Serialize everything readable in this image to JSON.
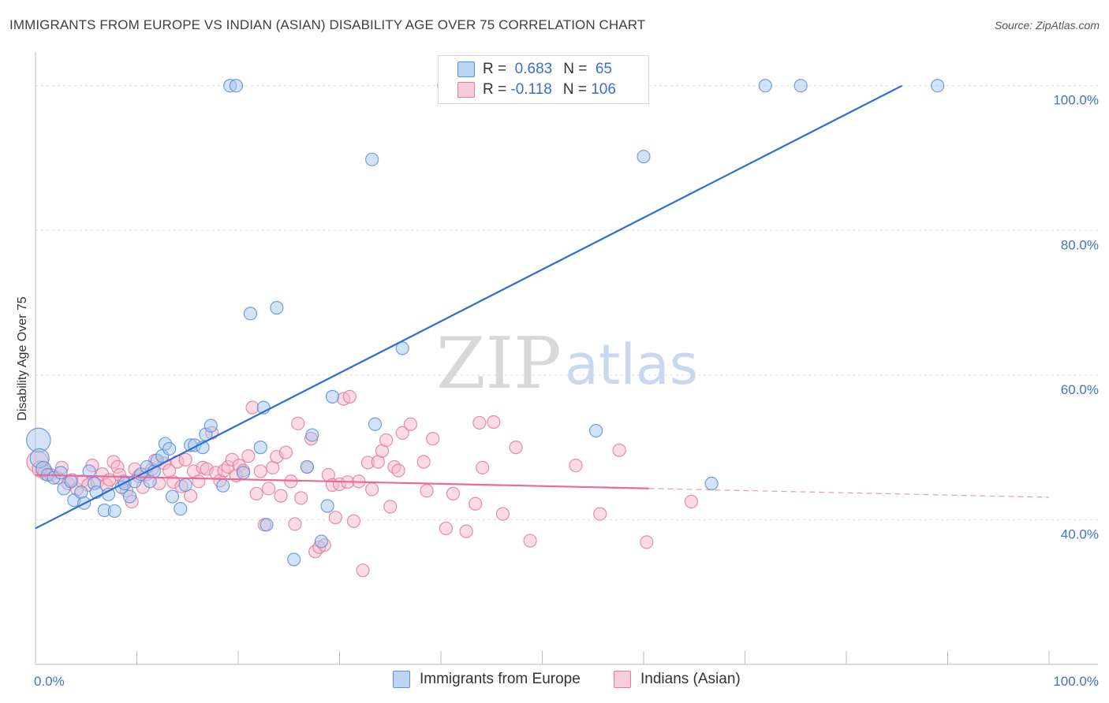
{
  "title": "IMMIGRANTS FROM EUROPE VS INDIAN (ASIAN) DISABILITY AGE OVER 75 CORRELATION CHART",
  "source": "Source: ZipAtlas.com",
  "watermark": {
    "zip": "ZIP",
    "atlas": "atlas"
  },
  "legend": {
    "europe": {
      "r_label": "R = ",
      "r_value": " 0.683",
      "n_label": "N = ",
      "n_value": " 65"
    },
    "indian": {
      "r_label": "R = ",
      "r_value": "-0.118",
      "n_label": "N = ",
      "n_value": "106"
    }
  },
  "bottom_legend": {
    "europe": "Immigrants from Europe",
    "indian": "Indians (Asian)"
  },
  "colors": {
    "europe_fill": "#a8c8f0",
    "europe_stroke": "#5b8fd6",
    "europe_line": "#2b6fd0",
    "indian_fill": "#f7b9cc",
    "indian_stroke": "#e07a9c",
    "indian_line": "#e8699a",
    "tick_text": "#3f74c9",
    "grid": "#dcdcdc"
  },
  "chart_data": {
    "type": "scatter",
    "title": "IMMIGRANTS FROM EUROPE VS INDIAN (ASIAN) DISABILITY AGE OVER 75 CORRELATION CHART",
    "xlabel": "",
    "ylabel": "Disability Age Over 75",
    "xlim": [
      0,
      100
    ],
    "ylim": [
      20,
      104
    ],
    "x_tick_labels": [
      "0.0%",
      "100.0%"
    ],
    "y_ticks": [
      40,
      60,
      80,
      100
    ],
    "y_tick_labels": [
      "40.0%",
      "60.0%",
      "80.0%",
      "100.0%"
    ],
    "grid": true,
    "legend_placement": "top-center",
    "series": [
      {
        "name": "Immigrants from Europe",
        "r": 0.683,
        "n": 65,
        "trend": {
          "x": [
            0,
            85.5
          ],
          "y": [
            38.8,
            100
          ],
          "solid_until": 85.5
        },
        "points": [
          [
            0.3,
            51,
            1.9
          ],
          [
            0.4,
            48.5,
            1.5
          ],
          [
            0.8,
            47,
            1.2
          ],
          [
            1.2,
            46.2,
            1
          ],
          [
            1.8,
            45.8,
            1
          ],
          [
            2.5,
            46.5,
            1
          ],
          [
            2.8,
            44.3,
            1
          ],
          [
            3.5,
            45.3,
            1
          ],
          [
            3.8,
            42.7,
            1
          ],
          [
            4.5,
            43.8,
            1
          ],
          [
            4.8,
            42.3,
            1
          ],
          [
            5.3,
            46.7,
            1
          ],
          [
            5.8,
            45,
            1
          ],
          [
            6,
            43.8,
            1
          ],
          [
            6.8,
            41.3,
            1
          ],
          [
            7.2,
            43.5,
            1
          ],
          [
            7.8,
            41.2,
            1
          ],
          [
            8.5,
            44.5,
            1
          ],
          [
            8.8,
            45,
            1
          ],
          [
            9.3,
            43.2,
            1
          ],
          [
            9.8,
            45.3,
            1
          ],
          [
            10.4,
            46.3,
            1
          ],
          [
            11,
            47.3,
            1
          ],
          [
            11.3,
            45.3,
            1
          ],
          [
            11.7,
            46.7,
            1
          ],
          [
            12,
            48.2,
            1
          ],
          [
            12.5,
            48.8,
            1
          ],
          [
            12.8,
            50.5,
            1
          ],
          [
            13.2,
            49.8,
            1
          ],
          [
            13.5,
            43.2,
            1
          ],
          [
            14.3,
            41.5,
            1
          ],
          [
            14.8,
            44.8,
            1
          ],
          [
            15.3,
            50.3,
            1
          ],
          [
            15.7,
            50.3,
            1
          ],
          [
            16.5,
            50,
            1
          ],
          [
            16.8,
            51.8,
            1
          ],
          [
            17.3,
            53,
            1
          ],
          [
            18.5,
            44.7,
            1
          ],
          [
            19.2,
            100,
            1
          ],
          [
            19.8,
            100,
            1
          ],
          [
            20.5,
            46.5,
            1
          ],
          [
            21.2,
            68.5,
            1
          ],
          [
            22.2,
            50,
            1
          ],
          [
            22.5,
            55.5,
            1
          ],
          [
            22.8,
            39.3,
            1
          ],
          [
            23.8,
            69.3,
            1
          ],
          [
            25.5,
            34.5,
            1
          ],
          [
            26.8,
            47.3,
            1
          ],
          [
            27.3,
            51.7,
            1
          ],
          [
            28.2,
            37,
            1
          ],
          [
            28.8,
            41.9,
            1
          ],
          [
            29.3,
            57,
            1
          ],
          [
            33.2,
            89.8,
            1
          ],
          [
            33.5,
            53.2,
            1
          ],
          [
            36.2,
            63.7,
            1
          ],
          [
            40.3,
            100,
            1
          ],
          [
            47.8,
            100,
            1
          ],
          [
            55.3,
            52.3,
            1
          ],
          [
            56.2,
            100,
            1
          ],
          [
            56.8,
            100,
            1
          ],
          [
            60,
            90.2,
            1
          ],
          [
            66.7,
            45,
            1
          ],
          [
            72,
            100,
            1
          ],
          [
            75.5,
            100,
            1
          ],
          [
            89,
            100,
            1
          ]
        ]
      },
      {
        "name": "Indians (Asian)",
        "r": -0.118,
        "n": 106,
        "trend": {
          "x": [
            0,
            100
          ],
          "y": [
            46.2,
            43.1
          ],
          "solid_until": 60.5
        },
        "points": [
          [
            0.2,
            48,
            1.7
          ],
          [
            0.5,
            47,
            1.3
          ],
          [
            1,
            46.5,
            1.2
          ],
          [
            1.5,
            46.2,
            1
          ],
          [
            2.2,
            45.8,
            1
          ],
          [
            2.6,
            47.2,
            1
          ],
          [
            3.2,
            45,
            1
          ],
          [
            3.6,
            45.5,
            1
          ],
          [
            4.1,
            44.2,
            1
          ],
          [
            4.6,
            45.3,
            1
          ],
          [
            5.2,
            44.8,
            1
          ],
          [
            5.6,
            47.5,
            1
          ],
          [
            6.1,
            45.2,
            1
          ],
          [
            6.6,
            46.3,
            1
          ],
          [
            7,
            44.8,
            1
          ],
          [
            7.3,
            45.5,
            1
          ],
          [
            7.7,
            48,
            1
          ],
          [
            8.1,
            47.3,
            1
          ],
          [
            8.3,
            46.2,
            1
          ],
          [
            8.7,
            45.3,
            1
          ],
          [
            9,
            44,
            1
          ],
          [
            9.5,
            42.5,
            1
          ],
          [
            9.8,
            47,
            1
          ],
          [
            10.2,
            46,
            1
          ],
          [
            10.6,
            44.5,
            1
          ],
          [
            11,
            46.3,
            1
          ],
          [
            11.5,
            47,
            1
          ],
          [
            11.8,
            48.2,
            1
          ],
          [
            12.2,
            45,
            1
          ],
          [
            12.7,
            47.8,
            1
          ],
          [
            13.2,
            46.8,
            1
          ],
          [
            13.6,
            45.2,
            1
          ],
          [
            14,
            48,
            1
          ],
          [
            14.4,
            44.6,
            1
          ],
          [
            14.8,
            48.3,
            1
          ],
          [
            15.3,
            43.3,
            1
          ],
          [
            15.6,
            46.7,
            1
          ],
          [
            16.1,
            45.3,
            1
          ],
          [
            16.5,
            47.2,
            1
          ],
          [
            16.9,
            47,
            1
          ],
          [
            17.4,
            52,
            1
          ],
          [
            17.8,
            46.5,
            1
          ],
          [
            18.2,
            45.4,
            1
          ],
          [
            18.6,
            46.8,
            1
          ],
          [
            19,
            47.3,
            1
          ],
          [
            19.4,
            48.3,
            1
          ],
          [
            19.8,
            46.1,
            1
          ],
          [
            20.1,
            47.5,
            1
          ],
          [
            20.5,
            46.8,
            1
          ],
          [
            21,
            48.8,
            1
          ],
          [
            21.4,
            55.5,
            1
          ],
          [
            21.8,
            43.6,
            1
          ],
          [
            22.2,
            46.7,
            1
          ],
          [
            22.6,
            39.3,
            1
          ],
          [
            23,
            44.3,
            1
          ],
          [
            23.4,
            47.2,
            1
          ],
          [
            23.8,
            48.7,
            1
          ],
          [
            24.2,
            43.3,
            1
          ],
          [
            24.7,
            49.3,
            1
          ],
          [
            25.2,
            45.3,
            1
          ],
          [
            25.6,
            39.4,
            1
          ],
          [
            25.9,
            53.3,
            1
          ],
          [
            26.2,
            43,
            1
          ],
          [
            26.8,
            47.3,
            1
          ],
          [
            27.2,
            51.2,
            1
          ],
          [
            27.6,
            35.6,
            1
          ],
          [
            28,
            36.2,
            1
          ],
          [
            28.5,
            36.5,
            1
          ],
          [
            28.9,
            46.2,
            1
          ],
          [
            29.3,
            44.8,
            1
          ],
          [
            29.6,
            40.3,
            1
          ],
          [
            30,
            44.9,
            1
          ],
          [
            30.4,
            56.7,
            1
          ],
          [
            30.8,
            45.2,
            1
          ],
          [
            31,
            57,
            1
          ],
          [
            31.4,
            39.8,
            1
          ],
          [
            31.9,
            45.3,
            1
          ],
          [
            32.3,
            33,
            1
          ],
          [
            32.8,
            47.9,
            1
          ],
          [
            33.2,
            44.2,
            1
          ],
          [
            33.8,
            48,
            1
          ],
          [
            34.2,
            49.5,
            1
          ],
          [
            34.6,
            51,
            1
          ],
          [
            35,
            41.8,
            1
          ],
          [
            35.4,
            47.3,
            1
          ],
          [
            35.8,
            46.8,
            1
          ],
          [
            36.2,
            52,
            1
          ],
          [
            37,
            53.2,
            1
          ],
          [
            38.3,
            48,
            1
          ],
          [
            38.6,
            44,
            1
          ],
          [
            39.2,
            51.2,
            1
          ],
          [
            40.5,
            38.8,
            1
          ],
          [
            41.2,
            43.6,
            1
          ],
          [
            42.5,
            38.4,
            1
          ],
          [
            43.4,
            42.2,
            1
          ],
          [
            43.8,
            53.4,
            1
          ],
          [
            44.1,
            47.2,
            1
          ],
          [
            45.2,
            53.5,
            1
          ],
          [
            46.1,
            40.8,
            1
          ],
          [
            47.4,
            50,
            1
          ],
          [
            48.8,
            37.1,
            1
          ],
          [
            53.3,
            47.5,
            1
          ],
          [
            55.7,
            40.8,
            1
          ],
          [
            57.6,
            49.6,
            1
          ],
          [
            60.3,
            36.9,
            1
          ],
          [
            64.7,
            42.5,
            1
          ]
        ]
      }
    ]
  }
}
